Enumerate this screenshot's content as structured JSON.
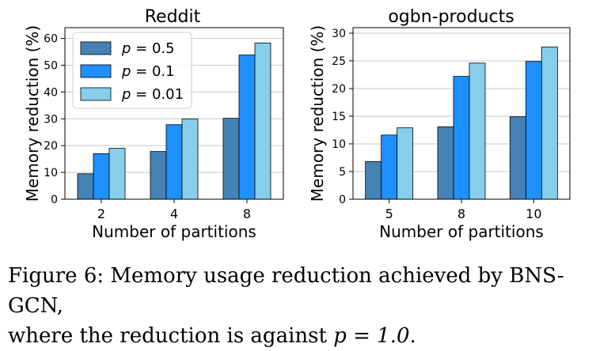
{
  "chart_data": [
    {
      "type": "bar",
      "title": "Reddit",
      "xlabel": "Number of partitions",
      "ylabel": "Memory reduction (%)",
      "categories": [
        "2",
        "4",
        "8"
      ],
      "ylim": [
        0,
        64
      ],
      "yticks": [
        0,
        10,
        20,
        30,
        40,
        50,
        60
      ],
      "grid": "horizontal",
      "legend_position": "top-left",
      "series": [
        {
          "name": "p = 0.5",
          "color": "#4682b4",
          "values": [
            9.5,
            17.8,
            30.2
          ]
        },
        {
          "name": "p = 0.1",
          "color": "#1e90ff",
          "values": [
            17.0,
            27.8,
            53.8
          ]
        },
        {
          "name": "p = 0.01",
          "color": "#87ceeb",
          "values": [
            19.0,
            30.0,
            58.3
          ]
        }
      ]
    },
    {
      "type": "bar",
      "title": "ogbn-products",
      "xlabel": "Number of partitions",
      "ylabel": "Memory reduction (%)",
      "categories": [
        "5",
        "8",
        "10"
      ],
      "ylim": [
        0,
        31
      ],
      "yticks": [
        0,
        5,
        10,
        15,
        20,
        25,
        30
      ],
      "grid": "horizontal",
      "series": [
        {
          "name": "p = 0.5",
          "color": "#4682b4",
          "values": [
            6.8,
            13.1,
            14.9
          ]
        },
        {
          "name": "p = 0.1",
          "color": "#1e90ff",
          "values": [
            11.6,
            22.2,
            24.9
          ]
        },
        {
          "name": "p = 0.01",
          "color": "#87ceeb",
          "values": [
            12.9,
            24.6,
            27.5
          ]
        }
      ]
    }
  ],
  "caption": {
    "line1": "Figure 6: Memory usage reduction achieved by BNS-GCN,",
    "line2_prefix": "where the reduction is against ",
    "line2_math": "p = 1.0",
    "line2_suffix": "."
  }
}
